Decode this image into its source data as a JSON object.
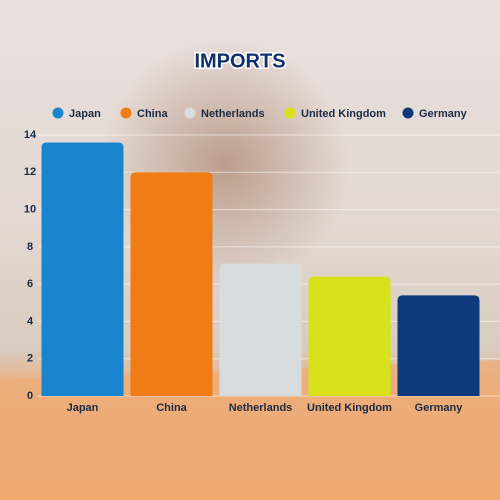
{
  "chart_data": {
    "type": "bar",
    "title": "IMPORTS",
    "categories": [
      "Japan",
      "China",
      "Netherlands",
      "United Kingdom",
      "Germany"
    ],
    "values": [
      13.6,
      12,
      7.1,
      6.4,
      5.4
    ],
    "colors": [
      "#1985cf",
      "#f07c15",
      "#d9dcdd",
      "#d8e21a",
      "#0e3a7d"
    ],
    "ylim": [
      0,
      14
    ],
    "yticks": [
      0,
      2,
      4,
      6,
      8,
      10,
      12,
      14
    ],
    "grid": true,
    "legend": "top"
  }
}
